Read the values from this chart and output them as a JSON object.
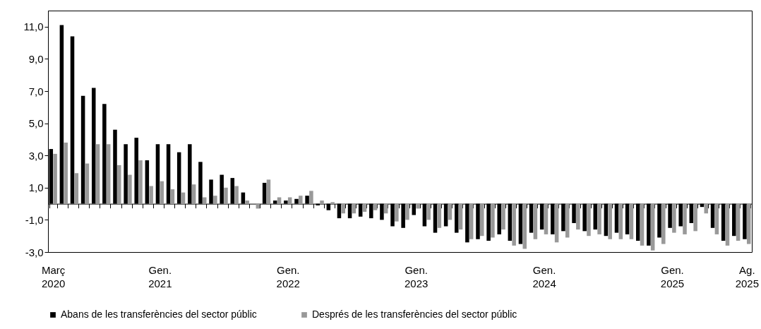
{
  "chart_data": {
    "type": "bar",
    "categories": [
      "Març 2020",
      null,
      null,
      null,
      null,
      null,
      null,
      null,
      null,
      null,
      "Gen. 2021",
      null,
      null,
      null,
      null,
      null,
      null,
      null,
      null,
      null,
      null,
      null,
      "Gen. 2022",
      null,
      null,
      null,
      null,
      null,
      null,
      null,
      null,
      null,
      null,
      null,
      "Gen. 2023",
      null,
      null,
      null,
      null,
      null,
      null,
      null,
      null,
      null,
      null,
      null,
      "Gen. 2024",
      null,
      null,
      null,
      null,
      null,
      null,
      null,
      null,
      null,
      null,
      null,
      "Gen. 2025",
      null,
      null,
      null,
      null,
      null,
      null,
      "Ag. 2025"
    ],
    "series": [
      {
        "name": "Abans de les transferències del sector públic",
        "color": "#000000",
        "values": [
          3.4,
          11.1,
          10.4,
          6.7,
          7.2,
          6.2,
          4.6,
          3.7,
          4.1,
          2.7,
          3.7,
          3.7,
          3.2,
          3.7,
          2.6,
          1.5,
          1.8,
          1.6,
          0.7,
          0.0,
          1.3,
          0.2,
          0.2,
          0.3,
          0.5,
          -0.1,
          -0.4,
          -0.9,
          -0.9,
          -0.8,
          -0.9,
          -1.0,
          -1.4,
          -1.5,
          -0.7,
          -1.4,
          -1.8,
          -1.4,
          -1.8,
          -2.4,
          -2.2,
          -2.3,
          -1.9,
          -2.3,
          -2.5,
          -1.8,
          -1.6,
          -1.9,
          -1.7,
          -1.2,
          -1.7,
          -1.6,
          -2.0,
          -1.8,
          -1.9,
          -2.3,
          -2.6,
          -2.1,
          -1.5,
          -1.4,
          -1.2,
          -0.2,
          -1.5,
          -2.3,
          -2.0,
          -2.2
        ]
      },
      {
        "name": "Després de les transferències del sector públic",
        "color": "#999999",
        "values": [
          3.1,
          3.8,
          1.9,
          2.5,
          3.7,
          3.7,
          2.4,
          1.8,
          2.7,
          1.1,
          1.4,
          0.9,
          0.7,
          1.2,
          0.4,
          0.5,
          1.0,
          1.1,
          0.2,
          -0.3,
          1.5,
          0.4,
          0.4,
          0.5,
          0.8,
          0.2,
          0.1,
          -0.6,
          -0.6,
          -0.5,
          -0.4,
          -0.6,
          -1.1,
          -1.0,
          -0.3,
          -1.0,
          -1.5,
          -1.0,
          -1.6,
          -2.2,
          -2.0,
          -2.1,
          -1.6,
          -2.6,
          -2.8,
          -2.2,
          -1.9,
          -2.4,
          -2.1,
          -1.6,
          -2.0,
          -1.9,
          -2.2,
          -2.2,
          -2.2,
          -2.6,
          -2.9,
          -2.5,
          -1.8,
          -1.9,
          -1.7,
          -0.6,
          -1.9,
          -2.6,
          -2.3,
          -2.5
        ]
      }
    ],
    "ylim": [
      -3,
      12
    ],
    "yticks": [
      {
        "value": -3,
        "label": "-3,0"
      },
      {
        "value": -1,
        "label": "-1,0"
      },
      {
        "value": 1,
        "label": "1,0"
      },
      {
        "value": 3,
        "label": "3,0"
      },
      {
        "value": 5,
        "label": "5,0"
      },
      {
        "value": 7,
        "label": "7,0"
      },
      {
        "value": 9,
        "label": "9,0"
      },
      {
        "value": 11,
        "label": "11,0"
      }
    ],
    "legend": "bottom"
  }
}
